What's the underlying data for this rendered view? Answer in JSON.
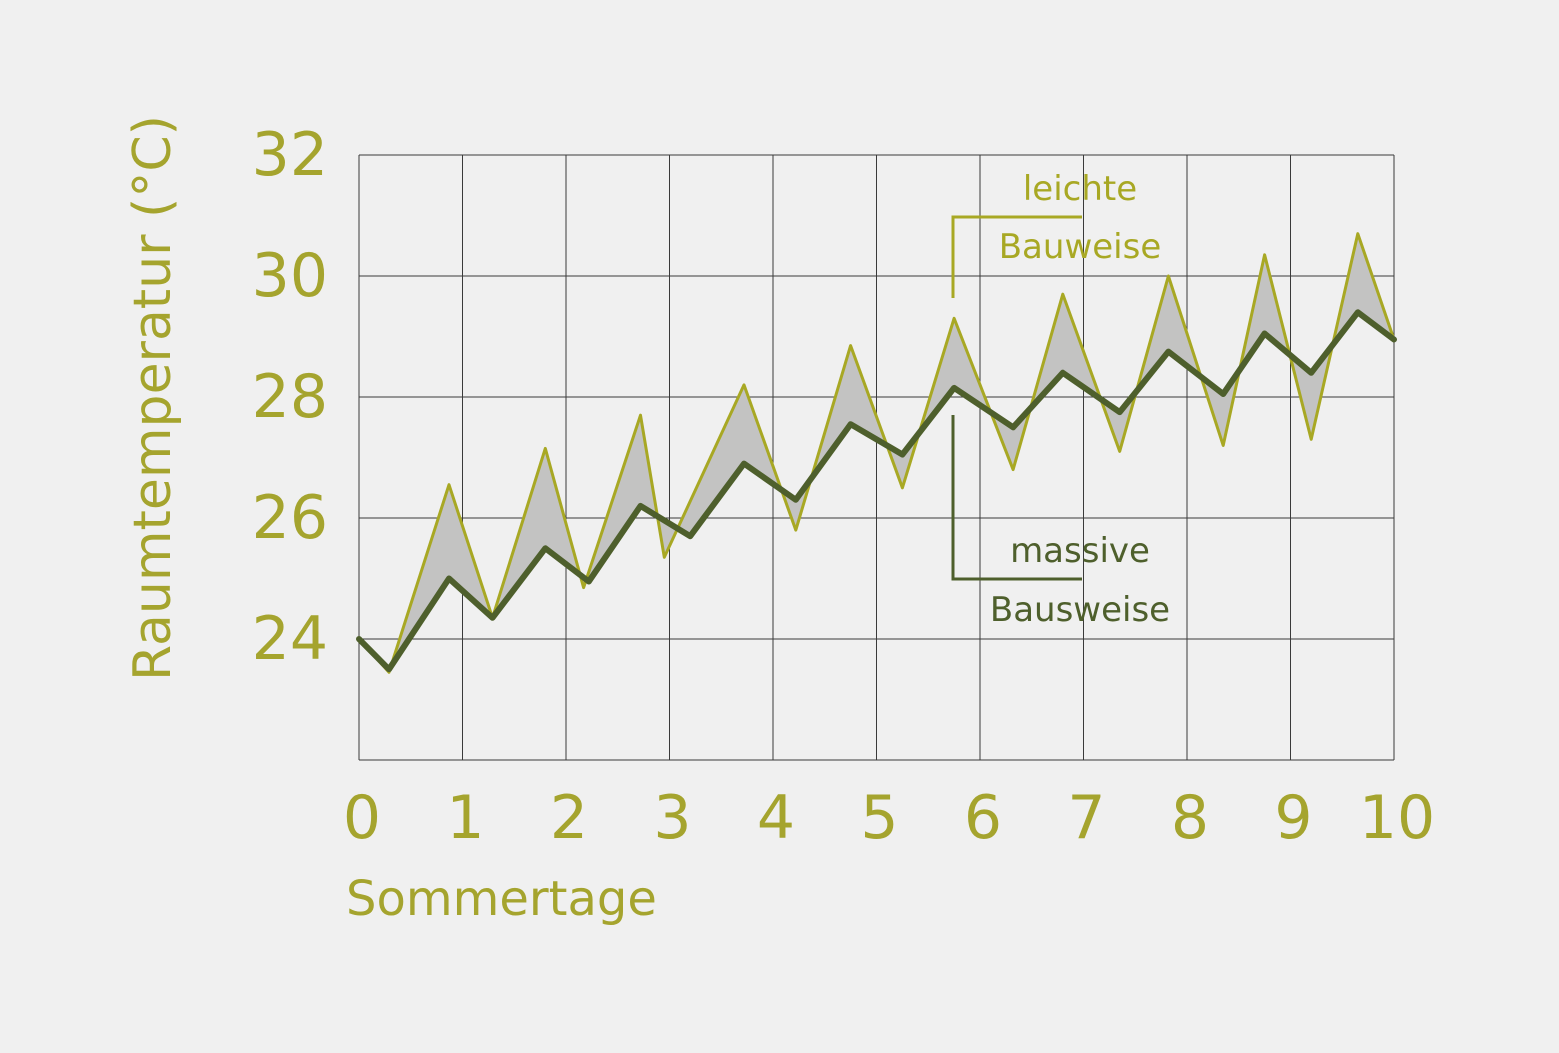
{
  "colors": {
    "background": "#f0f0f0",
    "label": "#a5a42e",
    "light_series": "#a8a824",
    "massive_series": "#4e5f2c",
    "band_fill": "#c3c3c2",
    "grid": "#3a3a3a"
  },
  "chart_data": {
    "type": "line",
    "xlabel": "Sommertage",
    "ylabel": "Raumtemperatur (°C)",
    "xlim": [
      0,
      10
    ],
    "ylim": [
      22,
      32
    ],
    "x_ticks": [
      0,
      1,
      2,
      3,
      4,
      5,
      6,
      7,
      8,
      9,
      10
    ],
    "x_tick_labels": [
      "0",
      "1",
      "2",
      "3",
      "4",
      "5",
      "6",
      "7",
      "8",
      "9",
      "10"
    ],
    "y_ticks": [
      24,
      26,
      28,
      30,
      32
    ],
    "y_tick_labels": [
      "24",
      "26",
      "28",
      "30",
      "32"
    ],
    "grid": true,
    "fill_between_series": true,
    "series": [
      {
        "name": "leichte Bauweise",
        "label_lines": [
          "leichte",
          "Bauweise"
        ],
        "color": "#a8a824",
        "x": [
          0,
          0.29,
          0.87,
          1.29,
          1.8,
          2.17,
          2.72,
          2.95,
          3.72,
          4.22,
          4.75,
          5.25,
          5.75,
          6.32,
          6.8,
          7.35,
          7.82,
          8.35,
          8.75,
          9.2,
          9.65,
          10
        ],
        "y": [
          24,
          23.45,
          26.55,
          24.35,
          27.15,
          24.85,
          27.7,
          25.35,
          28.2,
          25.8,
          28.85,
          26.5,
          29.3,
          26.8,
          29.7,
          27.1,
          30,
          27.2,
          30.35,
          27.3,
          30.7,
          28.95
        ]
      },
      {
        "name": "massive Bausweise",
        "label_lines": [
          "massive",
          "Bausweise"
        ],
        "color": "#4e5f2c",
        "x": [
          0,
          0.29,
          0.87,
          1.29,
          1.8,
          2.22,
          2.72,
          3.2,
          3.72,
          4.22,
          4.75,
          5.25,
          5.75,
          6.32,
          6.8,
          7.35,
          7.82,
          8.35,
          8.75,
          9.2,
          9.65,
          10
        ],
        "y": [
          24,
          23.5,
          25,
          24.35,
          25.5,
          24.95,
          26.2,
          25.7,
          26.9,
          26.3,
          27.55,
          27.05,
          28.15,
          27.5,
          28.4,
          27.75,
          28.75,
          28.05,
          29.05,
          28.4,
          29.4,
          28.95
        ]
      }
    ]
  }
}
